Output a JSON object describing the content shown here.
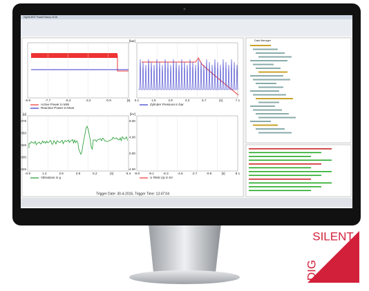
{
  "window_title": "DIgSILENT PowerFactory 2016",
  "plots": [
    {
      "x_ticks": [
        "-9.9",
        "-7.7",
        "-5.4",
        "-3.2",
        "-0.9",
        "[s]"
      ],
      "y_unit": "",
      "y_ticks": [],
      "legend": [
        "Active Power in MW",
        "Reactive Power in Mvar"
      ]
    },
    {
      "x_ticks": [
        "0.1",
        "1.5",
        "2.9",
        "4.3",
        "5.7",
        "[s]",
        "7.1"
      ],
      "y_unit": "[bar]",
      "y_ticks": [],
      "legend": [
        "Zylinder Pressure in bar"
      ]
    },
    {
      "x_ticks": [
        "-0.9",
        "1.4",
        "2.6",
        "3.9",
        "5.2",
        "[s]",
        "6.4"
      ],
      "y_unit": "[g]",
      "y_ticks": [
        "0.075",
        "0.050",
        "0.025",
        "0.000",
        "-0.025"
      ],
      "legend": [
        "Vibrations in g"
      ]
    },
    {
      "x_ticks": [
        "-9.9",
        "-8.1",
        "-6.3",
        "-4.5",
        "-2.7",
        "-0.9",
        "[s]",
        "8.1"
      ],
      "y_unit": "[kV]",
      "y_ticks": [
        "8.00",
        "4.00",
        "0.00",
        "-4.00"
      ],
      "legend": [
        "U RMS (a) in kV"
      ]
    }
  ],
  "trigger": "Trigger Date: 30-4-2016, Trigger Time: 13:47:04",
  "panel_title": "Data Manager",
  "logo": {
    "top": "SILENT",
    "side": "DIG"
  }
}
